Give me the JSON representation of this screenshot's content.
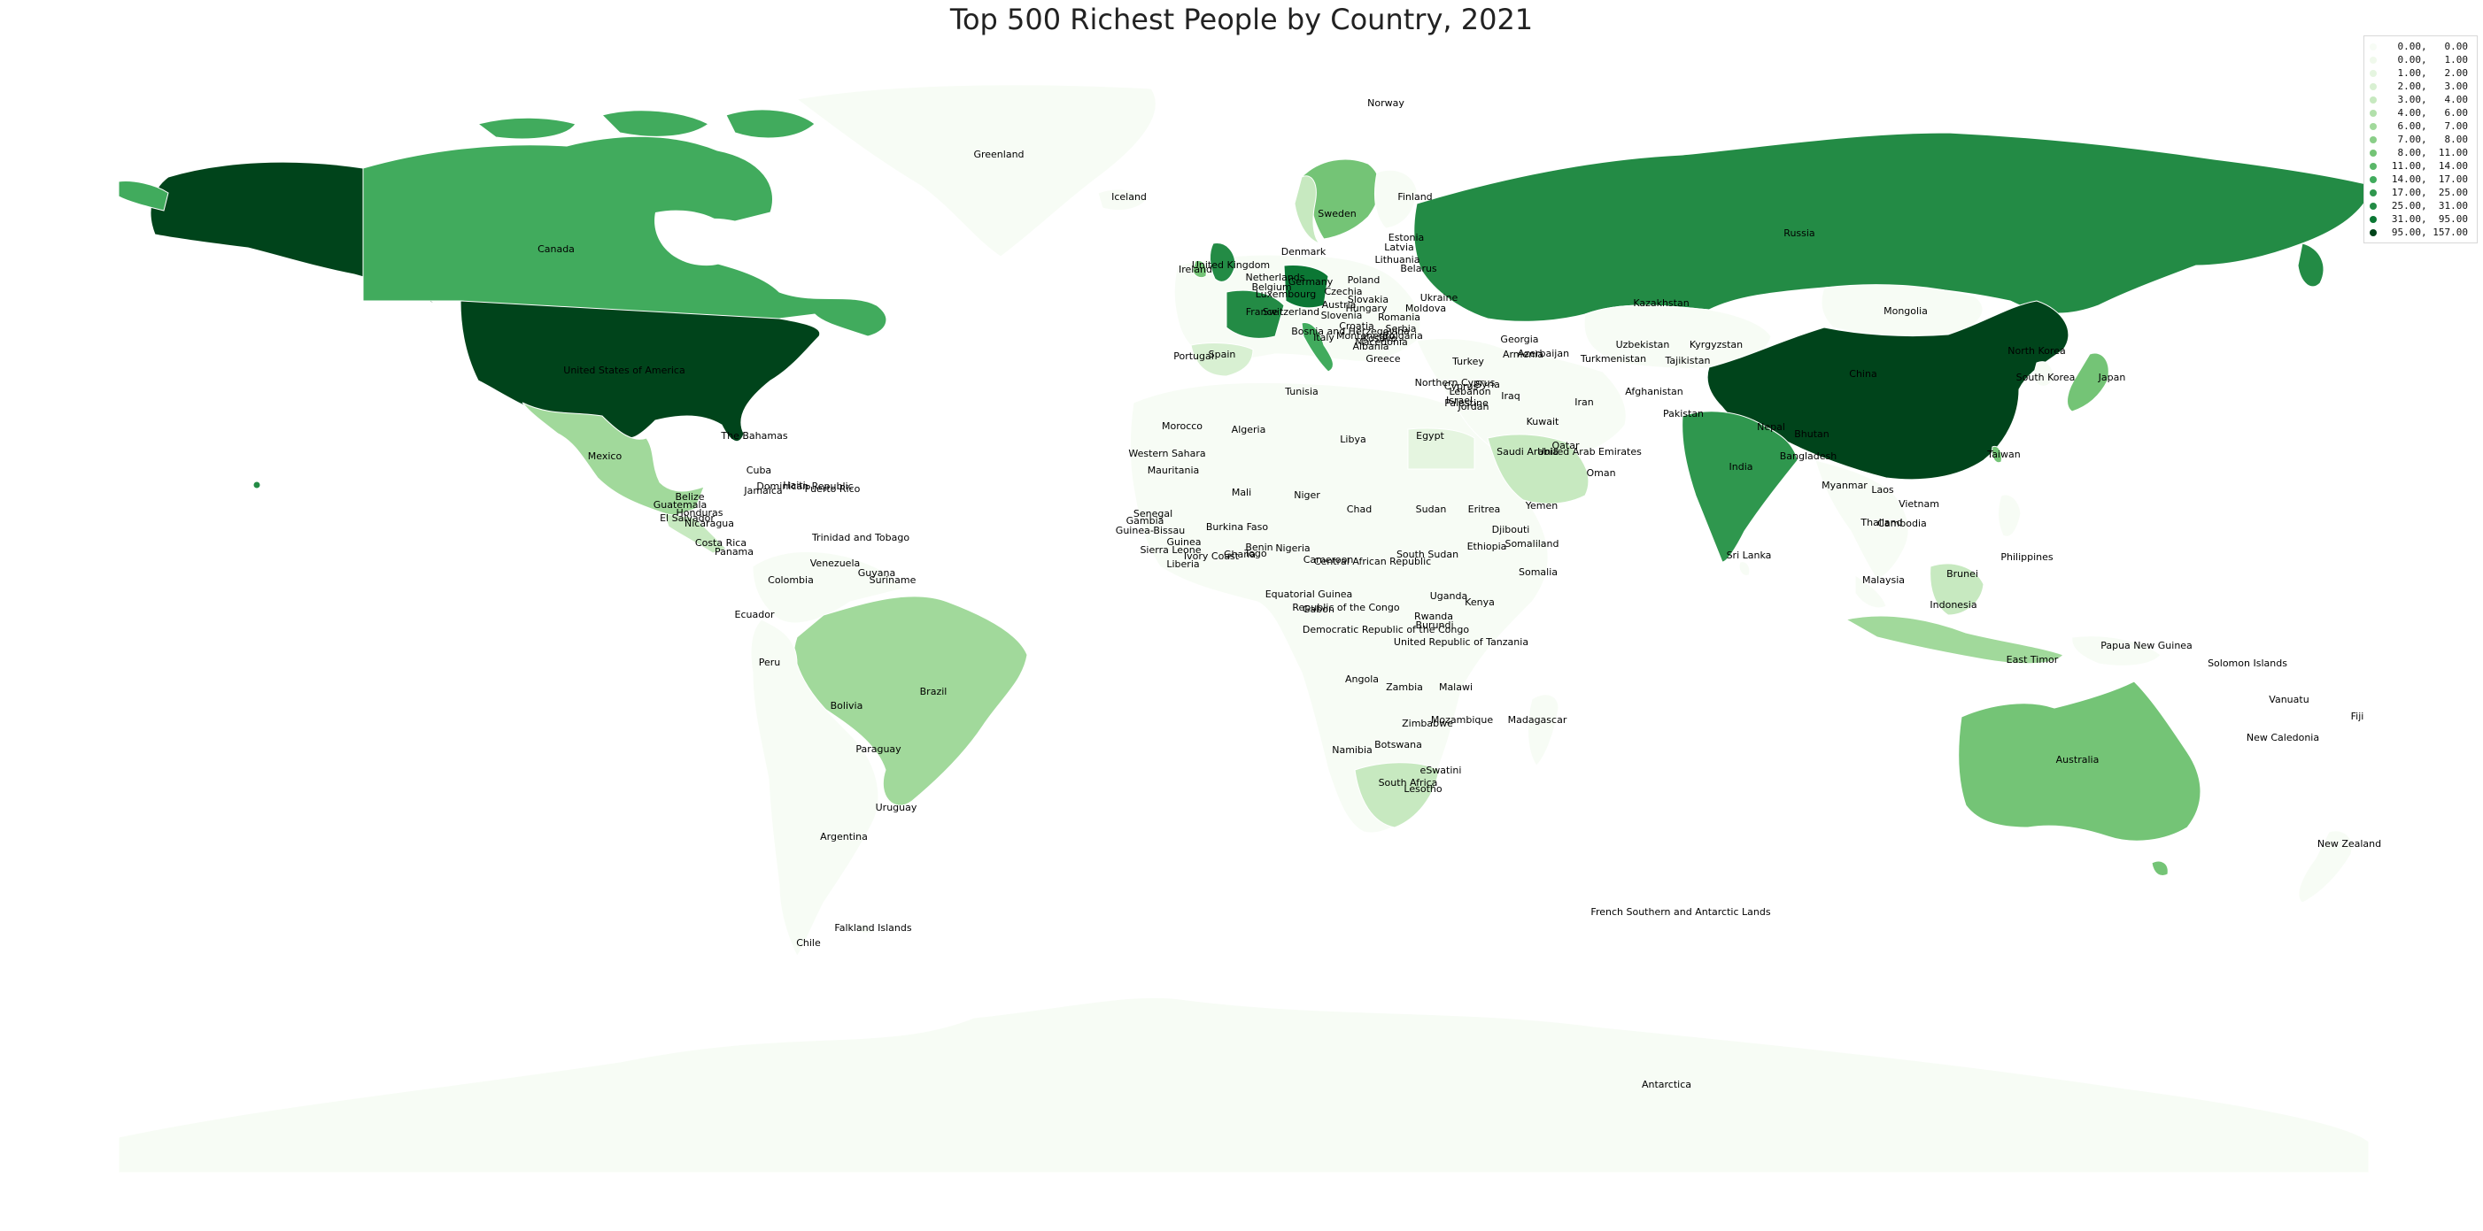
{
  "title": "Top 500 Richest People by Country, 2021",
  "legend": [
    {
      "label": "  0.00,   0.00",
      "color": "#f7fcf5"
    },
    {
      "label": "  0.00,   1.00",
      "color": "#f0f9ec"
    },
    {
      "label": "  1.00,   2.00",
      "color": "#e5f5e0"
    },
    {
      "label": "  2.00,   3.00",
      "color": "#d8f0d2"
    },
    {
      "label": "  3.00,   4.00",
      "color": "#c7e9c0"
    },
    {
      "label": "  4.00,   6.00",
      "color": "#b2e0ab"
    },
    {
      "label": "  6.00,   7.00",
      "color": "#a1d99b"
    },
    {
      "label": "  7.00,   8.00",
      "color": "#8ace88"
    },
    {
      "label": "  8.00,  11.00",
      "color": "#74c476"
    },
    {
      "label": " 11.00,  14.00",
      "color": "#5ab769"
    },
    {
      "label": " 14.00,  17.00",
      "color": "#41ab5d"
    },
    {
      "label": " 17.00,  25.00",
      "color": "#2f974e"
    },
    {
      "label": " 25.00,  31.00",
      "color": "#238b45"
    },
    {
      "label": " 31.00,  95.00",
      "color": "#0b7734"
    },
    {
      "label": " 95.00, 157.00",
      "color": "#00441b"
    }
  ],
  "country_labels": [
    "Norway",
    "Greenland",
    "Iceland",
    "Canada",
    "Finland",
    "Sweden",
    "Estonia",
    "Latvia",
    "Russia",
    "Denmark",
    "Lithuania",
    "United Kingdom",
    "Belarus",
    "Ireland",
    "Netherlands",
    "Germany",
    "Poland",
    "Belgium",
    "Luxembourg",
    "Czechia",
    "Ukraine",
    "Slovakia",
    "Austria",
    "Hungary",
    "Moldova",
    "France",
    "Switzerland",
    "Romania",
    "Slovenia",
    "Croatia",
    "Serbia",
    "Bosnia and Herzegovina",
    "Italy",
    "Montenegro",
    "Bulgaria",
    "Kosovo",
    "Macedonia",
    "Albania",
    "Kazakhstan",
    "Mongolia",
    "Georgia",
    "Armenia",
    "Azerbaijan",
    "Uzbekistan",
    "Kyrgyzstan",
    "North Korea",
    "Spain",
    "Portugal",
    "Greece",
    "Turkey",
    "Turkmenistan",
    "Tajikistan",
    "United States of America",
    "Northern Cyprus",
    "Cyprus",
    "Lebanon",
    "Syria",
    "Israel",
    "Palestine",
    "Jordan",
    "Iraq",
    "Iran",
    "Afghanistan",
    "China",
    "South Korea",
    "Japan",
    "Tunisia",
    "Pakistan",
    "Nepal",
    "Bhutan",
    "Kuwait",
    "Morocco",
    "Algeria",
    "Libya",
    "Egypt",
    "Qatar",
    "Saudi Arabia",
    "United Arab Emirates",
    "The Bahamas",
    "India",
    "Bangladesh",
    "Taiwan",
    "Mexico",
    "Western Sahara",
    "Oman",
    "Cuba",
    "Mauritania",
    "Dominican Republic",
    "Haiti",
    "Puerto Rico",
    "Jamaica",
    "Myanmar",
    "Laos",
    "Belize",
    "Mali",
    "Niger",
    "Guatemala",
    "Honduras",
    "Senegal",
    "El Salvador",
    "Nicaragua",
    "Gambia",
    "Chad",
    "Sudan",
    "Eritrea",
    "Vietnam",
    "Thailand",
    "Cambodia",
    "Guinea-Bissau",
    "Burkina Faso",
    "Yemen",
    "Djibouti",
    "Trinidad and Tobago",
    "Costa Rica",
    "Guinea",
    "Panama",
    "Benin",
    "Togo",
    "Nigeria",
    "Somaliland",
    "Ethiopia",
    "Sierra Leone",
    "Ghana",
    "Ivory Coast",
    "South Sudan",
    "Liberia",
    "Venezuela",
    "Central African Republic",
    "Cameroon",
    "Philippines",
    "Guyana",
    "Somalia",
    "Colombia",
    "Suriname",
    "Sri Lanka",
    "Brunei",
    "Malaysia",
    "Uganda",
    "Equatorial Guinea",
    "Kenya",
    "Ecuador",
    "Republic of the Congo",
    "Gabon",
    "Indonesia",
    "Rwanda",
    "Burundi",
    "Democratic Republic of the Congo",
    "United Republic of Tanzania",
    "Papua New Guinea",
    "Peru",
    "East Timor",
    "Solomon Islands",
    "Brazil",
    "Angola",
    "Zambia",
    "Malawi",
    "Bolivia",
    "Vanuatu",
    "Zimbabwe",
    "Mozambique",
    "Madagascar",
    "Fiji",
    "New Caledonia",
    "Paraguay",
    "Botswana",
    "Namibia",
    "Australia",
    "eSwatini",
    "South Africa",
    "Lesotho",
    "Uruguay",
    "Argentina",
    "New Zealand",
    "French Southern and Antarctic Lands",
    "Falkland Islands",
    "Chile",
    "Antarctica"
  ]
}
